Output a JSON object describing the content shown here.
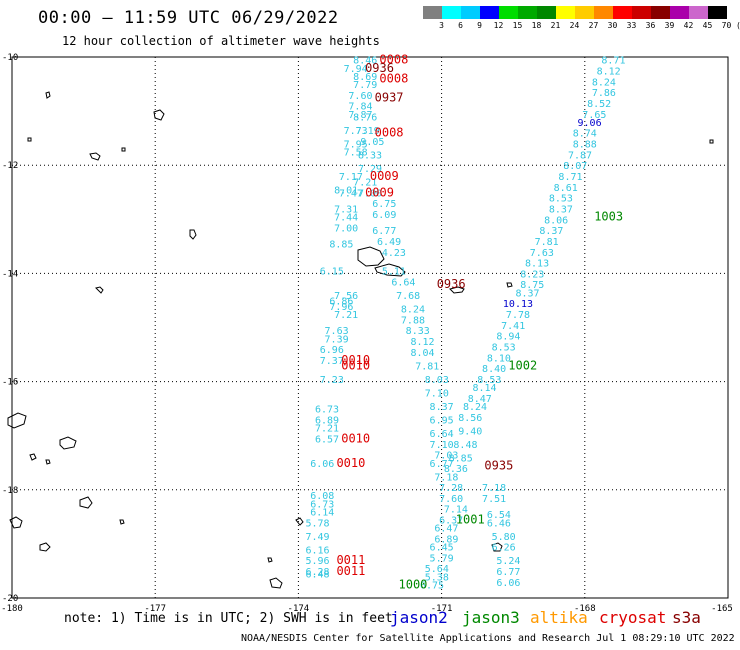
{
  "title": "00:00 – 11:59 UTC 06/29/2022",
  "subtitle": "12 hour collection of altimeter wave heights",
  "legend": {
    "ticks": [
      "3",
      "6",
      "9",
      "12",
      "15",
      "18",
      "21",
      "24",
      "27",
      "30",
      "33",
      "36",
      "39",
      "42",
      "45",
      "70",
      "(ft)"
    ],
    "colors": [
      "#808080",
      "#00ffff",
      "#00ccff",
      "#0000ff",
      "#00dd00",
      "#00aa00",
      "#008800",
      "#ffff00",
      "#ffcc00",
      "#ff8800",
      "#ff0000",
      "#cc0000",
      "#880000",
      "#aa00aa",
      "#cc66cc",
      "#000000"
    ]
  },
  "map": {
    "lat_labels": [
      "-10",
      "-12",
      "-14",
      "-16",
      "-18",
      "-20"
    ],
    "lon_labels": [
      "-180",
      "-177",
      "-174",
      "-171",
      "-168",
      "-165"
    ]
  },
  "track_colors": {
    "wave": "#33c6e0",
    "jason2": "#0000cc",
    "jason3": "#008800",
    "altika": "#ff9900",
    "cryosat": "#dd0000",
    "s3a": "#880000",
    "dark": "#8b0000"
  },
  "labels": [
    {
      "t": "8.46",
      "lat": -10.05,
      "lon": -172.6,
      "c": "wave"
    },
    {
      "t": "7.94",
      "lat": -10.2,
      "lon": -172.8,
      "c": "wave"
    },
    {
      "t": "8.69",
      "lat": -10.35,
      "lon": -172.6,
      "c": "wave"
    },
    {
      "t": "7.79",
      "lat": -10.5,
      "lon": -172.6,
      "c": "wave"
    },
    {
      "t": "7.60",
      "lat": -10.7,
      "lon": -172.7,
      "c": "wave"
    },
    {
      "t": "7.84",
      "lat": -10.9,
      "lon": -172.7,
      "c": "wave"
    },
    {
      "t": "7.87",
      "lat": -11.05,
      "lon": -172.7,
      "c": "wave"
    },
    {
      "t": "8.76",
      "lat": -11.1,
      "lon": -172.6,
      "c": "wave"
    },
    {
      "t": "7.73",
      "lat": -11.35,
      "lon": -172.8,
      "c": "wave"
    },
    {
      "t": "7.19",
      "lat": -11.35,
      "lon": -172.55,
      "c": "wave"
    },
    {
      "t": "7.95",
      "lat": -11.6,
      "lon": -172.8,
      "c": "wave"
    },
    {
      "t": "9.05",
      "lat": -11.55,
      "lon": -172.45,
      "c": "wave"
    },
    {
      "t": "7.58",
      "lat": -11.75,
      "lon": -172.8,
      "c": "wave"
    },
    {
      "t": "8.33",
      "lat": -11.8,
      "lon": -172.5,
      "c": "wave"
    },
    {
      "t": "7.29",
      "lat": -12.05,
      "lon": -172.5,
      "c": "wave"
    },
    {
      "t": "7.17",
      "lat": -12.2,
      "lon": -172.9,
      "c": "wave"
    },
    {
      "t": "7.21",
      "lat": -12.3,
      "lon": -172.6,
      "c": "wave"
    },
    {
      "t": "8.01",
      "lat": -12.45,
      "lon": -173.0,
      "c": "wave"
    },
    {
      "t": "7.47",
      "lat": -12.5,
      "lon": -172.9,
      "c": "wave"
    },
    {
      "t": "7.00",
      "lat": -12.5,
      "lon": -172.5,
      "c": "wave"
    },
    {
      "t": "6.75",
      "lat": -12.7,
      "lon": -172.2,
      "c": "wave"
    },
    {
      "t": "7.31",
      "lat": -12.8,
      "lon": -173.0,
      "c": "wave"
    },
    {
      "t": "6.09",
      "lat": -12.9,
      "lon": -172.2,
      "c": "wave"
    },
    {
      "t": "7.44",
      "lat": -12.95,
      "lon": -173.0,
      "c": "wave"
    },
    {
      "t": "7.00",
      "lat": -13.15,
      "lon": -173.0,
      "c": "wave"
    },
    {
      "t": "6.77",
      "lat": -13.2,
      "lon": -172.2,
      "c": "wave"
    },
    {
      "t": "6.49",
      "lat": -13.4,
      "lon": -172.1,
      "c": "wave"
    },
    {
      "t": "8.85",
      "lat": -13.45,
      "lon": -173.1,
      "c": "wave"
    },
    {
      "t": "4.23",
      "lat": -13.6,
      "lon": -172.0,
      "c": "wave"
    },
    {
      "t": "6.15",
      "lat": -13.95,
      "lon": -173.3,
      "c": "wave"
    },
    {
      "t": "5.11",
      "lat": -13.95,
      "lon": -172.0,
      "c": "wave"
    },
    {
      "t": "6.64",
      "lat": -14.15,
      "lon": -171.8,
      "c": "wave"
    },
    {
      "t": "7.56",
      "lat": -14.4,
      "lon": -173.0,
      "c": "wave"
    },
    {
      "t": "7.68",
      "lat": -14.4,
      "lon": -171.7,
      "c": "wave"
    },
    {
      "t": "6.86",
      "lat": -14.5,
      "lon": -173.1,
      "c": "wave"
    },
    {
      "t": "7.96",
      "lat": -14.6,
      "lon": -173.1,
      "c": "wave"
    },
    {
      "t": "7.21",
      "lat": -14.75,
      "lon": -173.0,
      "c": "wave"
    },
    {
      "t": "8.24",
      "lat": -14.65,
      "lon": -171.6,
      "c": "wave"
    },
    {
      "t": "7.88",
      "lat": -14.85,
      "lon": -171.6,
      "c": "wave"
    },
    {
      "t": "7.63",
      "lat": -15.05,
      "lon": -173.2,
      "c": "wave"
    },
    {
      "t": "8.33",
      "lat": -15.05,
      "lon": -171.5,
      "c": "wave"
    },
    {
      "t": "7.39",
      "lat": -15.2,
      "lon": -173.2,
      "c": "wave"
    },
    {
      "t": "8.12",
      "lat": -15.25,
      "lon": -171.4,
      "c": "wave"
    },
    {
      "t": "6.96",
      "lat": -15.4,
      "lon": -173.3,
      "c": "wave"
    },
    {
      "t": "8.04",
      "lat": -15.45,
      "lon": -171.4,
      "c": "wave"
    },
    {
      "t": "7.37",
      "lat": -15.6,
      "lon": -173.3,
      "c": "wave"
    },
    {
      "t": "7.81",
      "lat": -15.7,
      "lon": -171.3,
      "c": "wave"
    },
    {
      "t": "7.23",
      "lat": -15.95,
      "lon": -173.3,
      "c": "wave"
    },
    {
      "t": "8.03",
      "lat": -15.95,
      "lon": -171.1,
      "c": "wave"
    },
    {
      "t": "7.10",
      "lat": -16.2,
      "lon": -171.1,
      "c": "wave"
    },
    {
      "t": "8.37",
      "lat": -16.45,
      "lon": -171.0,
      "c": "wave"
    },
    {
      "t": "6.73",
      "lat": -16.5,
      "lon": -173.4,
      "c": "wave"
    },
    {
      "t": "6.95",
      "lat": -16.7,
      "lon": -171.0,
      "c": "wave"
    },
    {
      "t": "6.89",
      "lat": -16.7,
      "lon": -173.4,
      "c": "wave"
    },
    {
      "t": "7.21",
      "lat": -16.85,
      "lon": -173.4,
      "c": "wave"
    },
    {
      "t": "6.64",
      "lat": -16.95,
      "lon": -171.0,
      "c": "wave"
    },
    {
      "t": "6.57",
      "lat": -17.05,
      "lon": -173.4,
      "c": "wave"
    },
    {
      "t": "7.10",
      "lat": -17.15,
      "lon": -171.0,
      "c": "wave"
    },
    {
      "t": "7.03",
      "lat": -17.35,
      "lon": -170.9,
      "c": "wave"
    },
    {
      "t": "6.06",
      "lat": -17.5,
      "lon": -173.5,
      "c": "wave"
    },
    {
      "t": "6.77",
      "lat": -17.5,
      "lon": -171.0,
      "c": "wave"
    },
    {
      "t": "7.18",
      "lat": -17.75,
      "lon": -170.9,
      "c": "wave"
    },
    {
      "t": "7.28",
      "lat": -17.95,
      "lon": -170.8,
      "c": "wave"
    },
    {
      "t": "6.08",
      "lat": -18.1,
      "lon": -173.5,
      "c": "wave"
    },
    {
      "t": "7.60",
      "lat": -18.15,
      "lon": -170.8,
      "c": "wave"
    },
    {
      "t": "6.73",
      "lat": -18.25,
      "lon": -173.5,
      "c": "wave"
    },
    {
      "t": "6.14",
      "lat": -18.4,
      "lon": -173.5,
      "c": "wave"
    },
    {
      "t": "7.14",
      "lat": -18.35,
      "lon": -170.7,
      "c": "wave"
    },
    {
      "t": "6.37",
      "lat": -18.55,
      "lon": -170.8,
      "c": "wave"
    },
    {
      "t": "5.78",
      "lat": -18.6,
      "lon": -173.6,
      "c": "wave"
    },
    {
      "t": "6.47",
      "lat": -18.7,
      "lon": -170.9,
      "c": "wave"
    },
    {
      "t": "7.49",
      "lat": -18.85,
      "lon": -173.6,
      "c": "wave"
    },
    {
      "t": "6.89",
      "lat": -18.9,
      "lon": -170.9,
      "c": "wave"
    },
    {
      "t": "6.16",
      "lat": -19.1,
      "lon": -173.6,
      "c": "wave"
    },
    {
      "t": "6.45",
      "lat": -19.05,
      "lon": -171.0,
      "c": "wave"
    },
    {
      "t": "5.96",
      "lat": -19.3,
      "lon": -173.6,
      "c": "wave"
    },
    {
      "t": "5.79",
      "lat": -19.25,
      "lon": -171.0,
      "c": "wave"
    },
    {
      "t": "6.28",
      "lat": -19.5,
      "lon": -173.6,
      "c": "wave"
    },
    {
      "t": "5.64",
      "lat": -19.45,
      "lon": -171.1,
      "c": "wave"
    },
    {
      "t": "6.48",
      "lat": -19.55,
      "lon": -173.6,
      "c": "wave"
    },
    {
      "t": "5.38",
      "lat": -19.6,
      "lon": -171.1,
      "c": "wave"
    },
    {
      "t": "6.75",
      "lat": -19.75,
      "lon": -171.2,
      "c": "wave"
    },
    {
      "t": "8.71",
      "lat": -10.05,
      "lon": -167.4,
      "c": "wave"
    },
    {
      "t": "8.12",
      "lat": -10.25,
      "lon": -167.5,
      "c": "wave"
    },
    {
      "t": "8.24",
      "lat": -10.45,
      "lon": -167.6,
      "c": "wave"
    },
    {
      "t": "7.86",
      "lat": -10.65,
      "lon": -167.6,
      "c": "wave"
    },
    {
      "t": "8.52",
      "lat": -10.85,
      "lon": -167.7,
      "c": "wave"
    },
    {
      "t": "7.65",
      "lat": -11.05,
      "lon": -167.8,
      "c": "wave"
    },
    {
      "t": "9.06",
      "lat": -11.2,
      "lon": -167.9,
      "c": "jason2"
    },
    {
      "t": "8.74",
      "lat": -11.4,
      "lon": -168.0,
      "c": "wave"
    },
    {
      "t": "8.88",
      "lat": -11.6,
      "lon": -168.0,
      "c": "wave"
    },
    {
      "t": "7.87",
      "lat": -11.8,
      "lon": -168.1,
      "c": "wave"
    },
    {
      "t": "8.07",
      "lat": -12.0,
      "lon": -168.2,
      "c": "wave"
    },
    {
      "t": "8.71",
      "lat": -12.2,
      "lon": -168.3,
      "c": "wave"
    },
    {
      "t": "8.61",
      "lat": -12.4,
      "lon": -168.4,
      "c": "wave"
    },
    {
      "t": "8.53",
      "lat": -12.6,
      "lon": -168.5,
      "c": "wave"
    },
    {
      "t": "8.37",
      "lat": -12.8,
      "lon": -168.5,
      "c": "wave"
    },
    {
      "t": "8.06",
      "lat": -13.0,
      "lon": -168.6,
      "c": "wave"
    },
    {
      "t": "8.37",
      "lat": -13.2,
      "lon": -168.7,
      "c": "wave"
    },
    {
      "t": "7.81",
      "lat": -13.4,
      "lon": -168.8,
      "c": "wave"
    },
    {
      "t": "7.63",
      "lat": -13.6,
      "lon": -168.9,
      "c": "wave"
    },
    {
      "t": "8.13",
      "lat": -13.8,
      "lon": -169.0,
      "c": "wave"
    },
    {
      "t": "8.23",
      "lat": -14.0,
      "lon": -169.1,
      "c": "wave"
    },
    {
      "t": "8.75",
      "lat": -14.2,
      "lon": -169.1,
      "c": "wave"
    },
    {
      "t": "8.37",
      "lat": -14.35,
      "lon": -169.2,
      "c": "wave"
    },
    {
      "t": "10.13",
      "lat": -14.55,
      "lon": -169.4,
      "c": "jason2"
    },
    {
      "t": "7.78",
      "lat": -14.75,
      "lon": -169.4,
      "c": "wave"
    },
    {
      "t": "7.41",
      "lat": -14.95,
      "lon": -169.5,
      "c": "wave"
    },
    {
      "t": "8.94",
      "lat": -15.15,
      "lon": -169.6,
      "c": "wave"
    },
    {
      "t": "8.53",
      "lat": -15.35,
      "lon": -169.7,
      "c": "wave"
    },
    {
      "t": "8.10",
      "lat": -15.55,
      "lon": -169.8,
      "c": "wave"
    },
    {
      "t": "8.40",
      "lat": -15.75,
      "lon": -169.9,
      "c": "wave"
    },
    {
      "t": "8.53",
      "lat": -15.95,
      "lon": -170.0,
      "c": "wave"
    },
    {
      "t": "8.14",
      "lat": -16.1,
      "lon": -170.1,
      "c": "wave"
    },
    {
      "t": "8.47",
      "lat": -16.3,
      "lon": -170.2,
      "c": "wave"
    },
    {
      "t": "8.24",
      "lat": -16.45,
      "lon": -170.3,
      "c": "wave"
    },
    {
      "t": "8.56",
      "lat": -16.65,
      "lon": -170.4,
      "c": "wave"
    },
    {
      "t": "9.40",
      "lat": -16.9,
      "lon": -170.4,
      "c": "wave"
    },
    {
      "t": "8.48",
      "lat": -17.15,
      "lon": -170.5,
      "c": "wave"
    },
    {
      "t": "8.85",
      "lat": -17.4,
      "lon": -170.6,
      "c": "wave"
    },
    {
      "t": "8.36",
      "lat": -17.6,
      "lon": -170.7,
      "c": "wave"
    },
    {
      "t": "7.18",
      "lat": -17.95,
      "lon": -169.9,
      "c": "wave"
    },
    {
      "t": "7.51",
      "lat": -18.15,
      "lon": -169.9,
      "c": "wave"
    },
    {
      "t": "6.54",
      "lat": -18.45,
      "lon": -169.8,
      "c": "wave"
    },
    {
      "t": "6.46",
      "lat": -18.6,
      "lon": -169.8,
      "c": "wave"
    },
    {
      "t": "5.80",
      "lat": -18.85,
      "lon": -169.7,
      "c": "wave"
    },
    {
      "t": "6.26",
      "lat": -19.05,
      "lon": -169.7,
      "c": "wave"
    },
    {
      "t": "5.24",
      "lat": -19.3,
      "lon": -169.6,
      "c": "wave"
    },
    {
      "t": "6.77",
      "lat": -19.5,
      "lon": -169.6,
      "c": "wave"
    },
    {
      "t": "6.06",
      "lat": -19.7,
      "lon": -169.6,
      "c": "wave"
    },
    {
      "t": "0008",
      "lat": -10.05,
      "lon": -172.0,
      "c": "cryosat"
    },
    {
      "t": "0936",
      "lat": -10.2,
      "lon": -172.3,
      "c": "s3a"
    },
    {
      "t": "0008",
      "lat": -10.4,
      "lon": -172.0,
      "c": "cryosat"
    },
    {
      "t": "0937",
      "lat": -10.75,
      "lon": -172.1,
      "c": "s3a"
    },
    {
      "t": "0008",
      "lat": -11.4,
      "lon": -172.1,
      "c": "cryosat"
    },
    {
      "t": "0009",
      "lat": -12.2,
      "lon": -172.2,
      "c": "cryosat"
    },
    {
      "t": "0009",
      "lat": -12.5,
      "lon": -172.3,
      "c": "cryosat"
    },
    {
      "t": "1003",
      "lat": -12.95,
      "lon": -167.5,
      "c": "jason3"
    },
    {
      "t": "0936",
      "lat": -14.2,
      "lon": -170.8,
      "c": "s3a"
    },
    {
      "t": "0010",
      "lat": -15.6,
      "lon": -172.8,
      "c": "cryosat"
    },
    {
      "t": "0010",
      "lat": -15.7,
      "lon": -172.8,
      "c": "cryosat"
    },
    {
      "t": "1002",
      "lat": -15.7,
      "lon": -169.3,
      "c": "jason3"
    },
    {
      "t": "0010",
      "lat": -17.05,
      "lon": -172.8,
      "c": "cryosat"
    },
    {
      "t": "0010",
      "lat": -17.5,
      "lon": -172.9,
      "c": "cryosat"
    },
    {
      "t": "0935",
      "lat": -17.55,
      "lon": -169.8,
      "c": "s3a"
    },
    {
      "t": "1001",
      "lat": -18.55,
      "lon": -170.4,
      "c": "jason3"
    },
    {
      "t": "0011",
      "lat": -19.3,
      "lon": -172.9,
      "c": "cryosat"
    },
    {
      "t": "0011",
      "lat": -19.5,
      "lon": -172.9,
      "c": "cryosat"
    },
    {
      "t": "1000",
      "lat": -19.75,
      "lon": -171.6,
      "c": "jason3"
    }
  ],
  "note": "note: 1) Time is in UTC; 2) SWH is in feet",
  "satellites": [
    {
      "name": "jason2",
      "color": "#0000cc"
    },
    {
      "name": "jason3",
      "color": "#008800"
    },
    {
      "name": "altika",
      "color": "#ff9900"
    },
    {
      "name": "cryosat",
      "color": "#dd0000"
    },
    {
      "name": "s3a",
      "color": "#880000"
    }
  ],
  "credit": "NOAA/NESDIS Center for Satellite Applications and Research   Jul  1 08:29:10 UTC 2022"
}
